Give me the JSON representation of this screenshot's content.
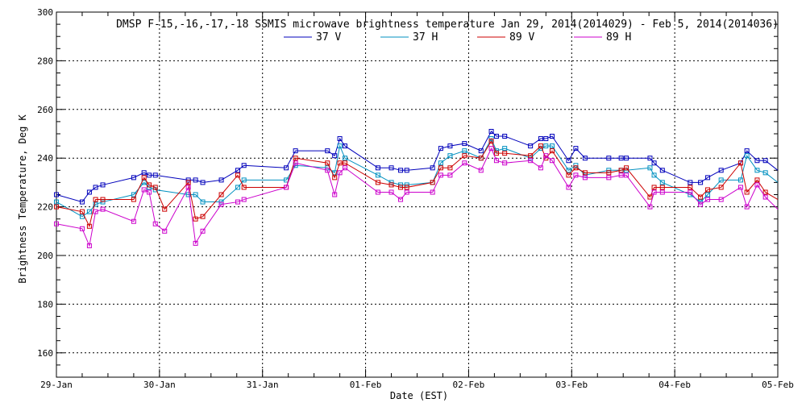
{
  "chart_data": {
    "type": "line",
    "title": "DMSP F-15,-16,-17,-18 SSMIS microwave brightness temperature Jan 29, 2014(2014029) - Feb  5, 2014(2014036)",
    "xlabel": "Date (EST)",
    "ylabel": "Brightness Temperature, Deg K",
    "xlim": [
      0,
      7
    ],
    "ylim": [
      150,
      300
    ],
    "y_ticks": [
      160,
      180,
      200,
      220,
      240,
      260,
      280,
      300
    ],
    "x_ticks": [
      0,
      1,
      2,
      3,
      4,
      5,
      6,
      7
    ],
    "x_tick_labels": [
      "29-Jan",
      "30-Jan",
      "31-Jan",
      "01-Feb",
      "02-Feb",
      "03-Feb",
      "04-Feb",
      "05-Feb"
    ],
    "grid": true,
    "legend_position": "top-center",
    "series": [
      {
        "name": "37 V",
        "color": "#0000bb",
        "x": [
          0,
          0.25,
          0.32,
          0.38,
          0.45,
          0.75,
          0.85,
          0.9,
          0.96,
          1.28,
          1.35,
          1.42,
          1.6,
          1.76,
          1.82,
          2.23,
          2.32,
          2.63,
          2.7,
          2.75,
          2.8,
          3.12,
          3.25,
          3.34,
          3.4,
          3.65,
          3.73,
          3.82,
          3.96,
          4.12,
          4.22,
          4.27,
          4.35,
          4.6,
          4.7,
          4.75,
          4.81,
          4.97,
          5.04,
          5.13,
          5.36,
          5.48,
          5.53,
          5.76,
          5.8,
          5.88,
          6.15,
          6.25,
          6.32,
          6.45,
          6.64,
          6.7,
          6.8,
          6.88,
          7.0
        ],
        "values": [
          225,
          222,
          226,
          228,
          229,
          232,
          234,
          233,
          233,
          231,
          231,
          230,
          231,
          235,
          237,
          236,
          243,
          243,
          241,
          248,
          245,
          236,
          236,
          235,
          235,
          236,
          244,
          245,
          246,
          243,
          251,
          249,
          249,
          245,
          248,
          248,
          249,
          239,
          244,
          240,
          240,
          240,
          240,
          240,
          238,
          235,
          230,
          230,
          232,
          235,
          238,
          243,
          239,
          239,
          235
        ]
      },
      {
        "name": "37 H",
        "color": "#0090c0",
        "x": [
          0,
          0.25,
          0.32,
          0.38,
          0.45,
          0.75,
          0.85,
          0.9,
          0.96,
          1.28,
          1.35,
          1.42,
          1.6,
          1.76,
          1.82,
          2.23,
          2.32,
          2.63,
          2.7,
          2.75,
          2.8,
          3.12,
          3.25,
          3.34,
          3.4,
          3.65,
          3.73,
          3.82,
          3.96,
          4.12,
          4.22,
          4.27,
          4.35,
          4.6,
          4.7,
          4.75,
          4.81,
          4.97,
          5.04,
          5.13,
          5.36,
          5.48,
          5.53,
          5.76,
          5.8,
          5.88,
          6.15,
          6.25,
          6.32,
          6.45,
          6.64,
          6.7,
          6.8,
          6.88,
          7.0
        ],
        "values": [
          222,
          216,
          218,
          221,
          222,
          225,
          230,
          228,
          227,
          225,
          225,
          222,
          222,
          228,
          231,
          231,
          237,
          236,
          234,
          245,
          240,
          233,
          230,
          229,
          229,
          230,
          238,
          241,
          243,
          240,
          248,
          243,
          244,
          240,
          244,
          245,
          245,
          235,
          237,
          233,
          235,
          235,
          235,
          236,
          233,
          230,
          225,
          222,
          225,
          231,
          231,
          241,
          235,
          234,
          230
        ]
      },
      {
        "name": "89 V",
        "color": "#cc0000",
        "x": [
          0,
          0.25,
          0.32,
          0.38,
          0.45,
          0.75,
          0.85,
          0.9,
          0.96,
          1.05,
          1.28,
          1.35,
          1.42,
          1.6,
          1.76,
          1.82,
          2.23,
          2.32,
          2.63,
          2.7,
          2.75,
          2.8,
          3.12,
          3.25,
          3.34,
          3.4,
          3.65,
          3.73,
          3.82,
          3.96,
          4.12,
          4.22,
          4.27,
          4.35,
          4.6,
          4.7,
          4.75,
          4.81,
          4.97,
          5.04,
          5.13,
          5.36,
          5.48,
          5.53,
          5.76,
          5.8,
          5.88,
          6.15,
          6.25,
          6.32,
          6.45,
          6.64,
          6.7,
          6.8,
          6.88,
          7.0
        ],
        "values": [
          220,
          218,
          212,
          223,
          223,
          223,
          232,
          229,
          228,
          219,
          230,
          215,
          216,
          225,
          233,
          228,
          228,
          240,
          238,
          232,
          238,
          238,
          230,
          229,
          228,
          228,
          230,
          236,
          236,
          241,
          240,
          247,
          242,
          242,
          241,
          245,
          240,
          243,
          233,
          236,
          234,
          234,
          235,
          236,
          224,
          228,
          228,
          228,
          224,
          227,
          228,
          238,
          226,
          231,
          226,
          223
        ]
      },
      {
        "name": "89 H",
        "color": "#cc00cc",
        "x": [
          0,
          0.25,
          0.32,
          0.38,
          0.45,
          0.75,
          0.85,
          0.9,
          0.96,
          1.05,
          1.28,
          1.35,
          1.42,
          1.6,
          1.76,
          1.82,
          2.23,
          2.32,
          2.63,
          2.7,
          2.75,
          2.8,
          3.12,
          3.25,
          3.34,
          3.4,
          3.65,
          3.73,
          3.82,
          3.96,
          4.12,
          4.22,
          4.27,
          4.35,
          4.6,
          4.7,
          4.75,
          4.81,
          4.97,
          5.04,
          5.13,
          5.36,
          5.48,
          5.53,
          5.76,
          5.8,
          5.88,
          6.15,
          6.25,
          6.32,
          6.45,
          6.64,
          6.7,
          6.8,
          6.88,
          7.0
        ],
        "values": [
          213,
          211,
          204,
          218,
          219,
          214,
          227,
          226,
          213,
          210,
          228,
          205,
          210,
          221,
          222,
          223,
          228,
          238,
          235,
          225,
          234,
          236,
          226,
          226,
          223,
          226,
          226,
          233,
          233,
          238,
          235,
          244,
          239,
          238,
          239,
          236,
          241,
          239,
          228,
          233,
          232,
          232,
          233,
          233,
          220,
          226,
          226,
          226,
          221,
          223,
          223,
          228,
          220,
          229,
          224,
          219
        ]
      }
    ]
  }
}
